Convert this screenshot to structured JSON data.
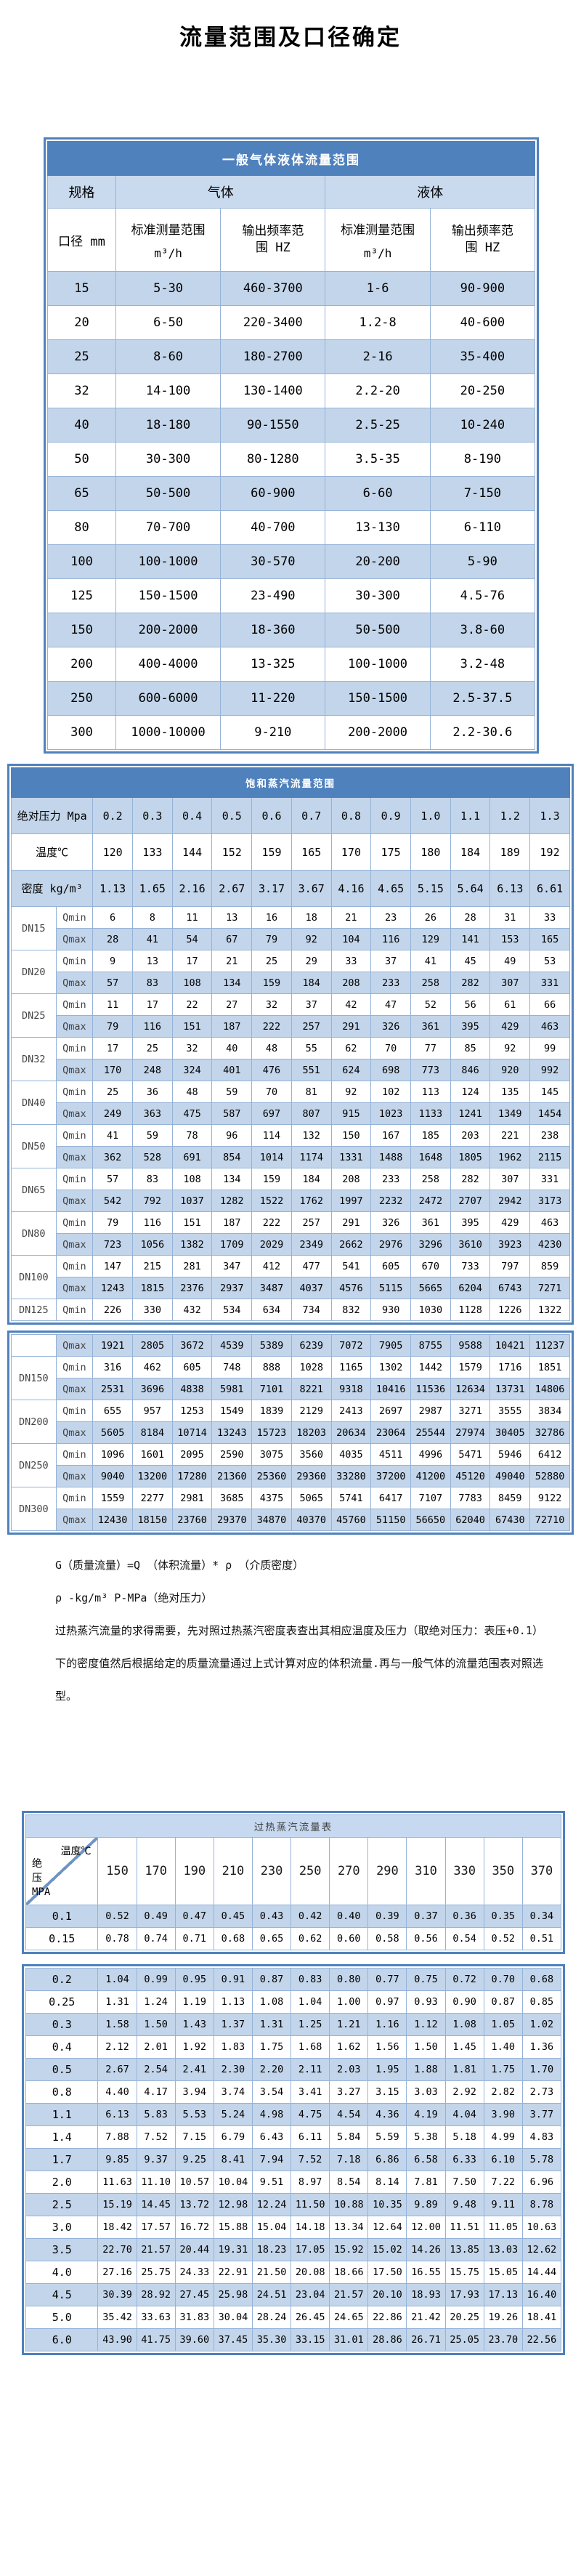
{
  "title": "流量范围及口径确定",
  "colors": {
    "header_blue": "#4f81bd",
    "band_blue": "#c3d5ea",
    "grid_blue": "#95b3d7",
    "superheated_title_bg": "#c6d9f1"
  },
  "gas_liquid_table": {
    "title": "一般气体液体流量范围",
    "spec_label": "规格",
    "gas_label": "气体",
    "liquid_label": "液体",
    "diameter_label": "口径 mm",
    "range_label": "标准测量范围",
    "range_unit": "m³/h",
    "freq_label": "输出频率范围",
    "freq_unit": "HZ",
    "rows": [
      {
        "dn": "15",
        "gas_range": "5-30",
        "gas_freq": "460-3700",
        "liquid_range": "1-6",
        "liquid_freq": "90-900"
      },
      {
        "dn": "20",
        "gas_range": "6-50",
        "gas_freq": "220-3400",
        "liquid_range": "1.2-8",
        "liquid_freq": "40-600"
      },
      {
        "dn": "25",
        "gas_range": "8-60",
        "gas_freq": "180-2700",
        "liquid_range": "2-16",
        "liquid_freq": "35-400"
      },
      {
        "dn": "32",
        "gas_range": "14-100",
        "gas_freq": "130-1400",
        "liquid_range": "2.2-20",
        "liquid_freq": "20-250"
      },
      {
        "dn": "40",
        "gas_range": "18-180",
        "gas_freq": "90-1550",
        "liquid_range": "2.5-25",
        "liquid_freq": "10-240"
      },
      {
        "dn": "50",
        "gas_range": "30-300",
        "gas_freq": "80-1280",
        "liquid_range": "3.5-35",
        "liquid_freq": "8-190"
      },
      {
        "dn": "65",
        "gas_range": "50-500",
        "gas_freq": "60-900",
        "liquid_range": "6-60",
        "liquid_freq": "7-150"
      },
      {
        "dn": "80",
        "gas_range": "70-700",
        "gas_freq": "40-700",
        "liquid_range": "13-130",
        "liquid_freq": "6-110"
      },
      {
        "dn": "100",
        "gas_range": "100-1000",
        "gas_freq": "30-570",
        "liquid_range": "20-200",
        "liquid_freq": "5-90"
      },
      {
        "dn": "125",
        "gas_range": "150-1500",
        "gas_freq": "23-490",
        "liquid_range": "30-300",
        "liquid_freq": "4.5-76"
      },
      {
        "dn": "150",
        "gas_range": "200-2000",
        "gas_freq": "18-360",
        "liquid_range": "50-500",
        "liquid_freq": "3.8-60"
      },
      {
        "dn": "200",
        "gas_range": "400-4000",
        "gas_freq": "13-325",
        "liquid_range": "100-1000",
        "liquid_freq": "3.2-48"
      },
      {
        "dn": "250",
        "gas_range": "600-6000",
        "gas_freq": "11-220",
        "liquid_range": "150-1500",
        "liquid_freq": "2.5-37.5"
      },
      {
        "dn": "300",
        "gas_range": "1000-10000",
        "gas_freq": "9-210",
        "liquid_range": "200-2000",
        "liquid_freq": "2.2-30.6"
      }
    ]
  },
  "saturated_table": {
    "title": "饱和蒸汽流量范围",
    "pressure_label": "绝对压力 Mpa",
    "temperature_label": "温度℃",
    "density_label": "密度 kg/m³",
    "qmin_label": "Qmin",
    "qmax_label": "Qmax",
    "pressures": [
      "0.2",
      "0.3",
      "0.4",
      "0.5",
      "0.6",
      "0.7",
      "0.8",
      "0.9",
      "1.0",
      "1.1",
      "1.2",
      "1.3"
    ],
    "temperatures": [
      120,
      133,
      144,
      152,
      159,
      165,
      170,
      175,
      180,
      184,
      189,
      192
    ],
    "densities": [
      "1.13",
      "1.65",
      "2.16",
      "2.67",
      "3.17",
      "3.67",
      "4.16",
      "4.65",
      "5.15",
      "5.64",
      "6.13",
      "6.61"
    ],
    "groups": [
      {
        "dn": "DN15",
        "qmin": [
          6,
          8,
          11,
          13,
          16,
          18,
          21,
          23,
          26,
          28,
          31,
          33
        ],
        "qmax": [
          28,
          41,
          54,
          67,
          79,
          92,
          104,
          116,
          129,
          141,
          153,
          165
        ]
      },
      {
        "dn": "DN20",
        "qmin": [
          9,
          13,
          17,
          21,
          25,
          29,
          33,
          37,
          41,
          45,
          49,
          53
        ],
        "qmax": [
          57,
          83,
          108,
          134,
          159,
          184,
          208,
          233,
          258,
          282,
          307,
          331
        ]
      },
      {
        "dn": "DN25",
        "qmin": [
          11,
          17,
          22,
          27,
          32,
          37,
          42,
          47,
          52,
          56,
          61,
          66
        ],
        "qmax": [
          79,
          116,
          151,
          187,
          222,
          257,
          291,
          326,
          361,
          395,
          429,
          463
        ]
      },
      {
        "dn": "DN32",
        "qmin": [
          17,
          25,
          32,
          40,
          48,
          55,
          62,
          70,
          77,
          85,
          92,
          99
        ],
        "qmax": [
          170,
          248,
          324,
          401,
          476,
          551,
          624,
          698,
          773,
          846,
          920,
          992
        ]
      },
      {
        "dn": "DN40",
        "qmin": [
          25,
          36,
          48,
          59,
          70,
          81,
          92,
          102,
          113,
          124,
          135,
          145
        ],
        "qmax": [
          249,
          363,
          475,
          587,
          697,
          807,
          915,
          1023,
          1133,
          1241,
          1349,
          1454
        ]
      },
      {
        "dn": "DN50",
        "qmin": [
          41,
          59,
          78,
          96,
          114,
          132,
          150,
          167,
          185,
          203,
          221,
          238
        ],
        "qmax": [
          362,
          528,
          691,
          854,
          1014,
          1174,
          1331,
          1488,
          1648,
          1805,
          1962,
          2115
        ]
      },
      {
        "dn": "DN65",
        "qmin": [
          57,
          83,
          108,
          134,
          159,
          184,
          208,
          233,
          258,
          282,
          307,
          331
        ],
        "qmax": [
          542,
          792,
          1037,
          1282,
          1522,
          1762,
          1997,
          2232,
          2472,
          2707,
          2942,
          3173
        ]
      },
      {
        "dn": "DN80",
        "qmin": [
          79,
          116,
          151,
          187,
          222,
          257,
          291,
          326,
          361,
          395,
          429,
          463
        ],
        "qmax": [
          723,
          1056,
          1382,
          1709,
          2029,
          2349,
          2662,
          2976,
          3296,
          3610,
          3923,
          4230
        ]
      },
      {
        "dn": "DN100",
        "qmin": [
          147,
          215,
          281,
          347,
          412,
          477,
          541,
          605,
          670,
          733,
          797,
          859
        ],
        "qmax": [
          1243,
          1815,
          2376,
          2937,
          3487,
          4037,
          4576,
          5115,
          5665,
          6204,
          6743,
          7271
        ]
      },
      {
        "dn": "DN125",
        "qmin": [
          226,
          330,
          432,
          534,
          634,
          734,
          832,
          930,
          1030,
          1128,
          1226,
          1322
        ]
      }
    ],
    "continued": {
      "qmax_first": [
        1921,
        2805,
        3672,
        4539,
        5389,
        6239,
        7072,
        7905,
        8755,
        9588,
        10421,
        11237
      ],
      "groups": [
        {
          "dn": "DN150",
          "qmin": [
            316,
            462,
            605,
            748,
            888,
            1028,
            1165,
            1302,
            1442,
            1579,
            1716,
            1851
          ],
          "qmax": [
            2531,
            3696,
            4838,
            5981,
            7101,
            8221,
            9318,
            10416,
            11536,
            12634,
            13731,
            14806
          ]
        },
        {
          "dn": "DN200",
          "qmin": [
            655,
            957,
            1253,
            1549,
            1839,
            2129,
            2413,
            2697,
            2987,
            3271,
            3555,
            3834
          ],
          "qmax": [
            5605,
            8184,
            10714,
            13243,
            15723,
            18203,
            20634,
            23064,
            25544,
            27974,
            30405,
            32786
          ]
        },
        {
          "dn": "DN250",
          "qmin": [
            1096,
            1601,
            2095,
            2590,
            3075,
            3560,
            4035,
            4511,
            4996,
            5471,
            5946,
            6412
          ],
          "qmax": [
            9040,
            13200,
            17280,
            21360,
            25360,
            29360,
            33280,
            37200,
            41200,
            45120,
            49040,
            52880
          ]
        },
        {
          "dn": "DN300",
          "qmin": [
            1559,
            2277,
            2981,
            3685,
            4375,
            5065,
            5741,
            6417,
            7107,
            7783,
            8459,
            9122
          ],
          "qmax": [
            12430,
            18150,
            23760,
            29370,
            34870,
            40370,
            45760,
            51150,
            56650,
            62040,
            67430,
            72710
          ]
        }
      ]
    }
  },
  "notes": [
    "G（质量流量）=Q （体积流量）* ρ （介质密度）",
    "ρ -kg/m³ P-MPa（绝对压力）",
    "过热蒸汽流量的求得需要，先对照过热蒸汽密度表查出其相应温度及压力（取绝对压力：表压+0.1）下的密度值然后根据给定的质量流量通过上式计算对应的体积流量.再与一般气体的流量范围表对照选型。"
  ],
  "superheated_table": {
    "title": "过热蒸汽流量表",
    "corner_top": "温度℃",
    "corner_bottom": "绝压 MPA",
    "temperatures": [
      "150",
      "170",
      "190",
      "210",
      "230",
      "250",
      "270",
      "290",
      "310",
      "330",
      "350",
      "370"
    ],
    "rows_box1": [
      {
        "p": "0.1",
        "v": [
          "0.52",
          "0.49",
          "0.47",
          "0.45",
          "0.43",
          "0.42",
          "0.40",
          "0.39",
          "0.37",
          "0.36",
          "0.35",
          "0.34"
        ]
      },
      {
        "p": "0.15",
        "v": [
          "0.78",
          "0.74",
          "0.71",
          "0.68",
          "0.65",
          "0.62",
          "0.60",
          "0.58",
          "0.56",
          "0.54",
          "0.52",
          "0.51"
        ]
      }
    ],
    "rows_box2": [
      {
        "p": "0.2",
        "v": [
          "1.04",
          "0.99",
          "0.95",
          "0.91",
          "0.87",
          "0.83",
          "0.80",
          "0.77",
          "0.75",
          "0.72",
          "0.70",
          "0.68"
        ]
      },
      {
        "p": "0.25",
        "v": [
          "1.31",
          "1.24",
          "1.19",
          "1.13",
          "1.08",
          "1.04",
          "1.00",
          "0.97",
          "0.93",
          "0.90",
          "0.87",
          "0.85"
        ]
      },
      {
        "p": "0.3",
        "v": [
          "1.58",
          "1.50",
          "1.43",
          "1.37",
          "1.31",
          "1.25",
          "1.21",
          "1.16",
          "1.12",
          "1.08",
          "1.05",
          "1.02"
        ]
      },
      {
        "p": "0.4",
        "v": [
          "2.12",
          "2.01",
          "1.92",
          "1.83",
          "1.75",
          "1.68",
          "1.62",
          "1.56",
          "1.50",
          "1.45",
          "1.40",
          "1.36"
        ]
      },
      {
        "p": "0.5",
        "v": [
          "2.67",
          "2.54",
          "2.41",
          "2.30",
          "2.20",
          "2.11",
          "2.03",
          "1.95",
          "1.88",
          "1.81",
          "1.75",
          "1.70"
        ]
      },
      {
        "p": "0.8",
        "v": [
          "4.40",
          "4.17",
          "3.94",
          "3.74",
          "3.54",
          "3.41",
          "3.27",
          "3.15",
          "3.03",
          "2.92",
          "2.82",
          "2.73"
        ]
      },
      {
        "p": "1.1",
        "v": [
          "6.13",
          "5.83",
          "5.53",
          "5.24",
          "4.98",
          "4.75",
          "4.54",
          "4.36",
          "4.19",
          "4.04",
          "3.90",
          "3.77"
        ]
      },
      {
        "p": "1.4",
        "v": [
          "7.88",
          "7.52",
          "7.15",
          "6.79",
          "6.43",
          "6.11",
          "5.84",
          "5.59",
          "5.38",
          "5.18",
          "4.99",
          "4.83"
        ]
      },
      {
        "p": "1.7",
        "v": [
          "9.85",
          "9.37",
          "9.25",
          "8.41",
          "7.94",
          "7.52",
          "7.18",
          "6.86",
          "6.58",
          "6.33",
          "6.10",
          "5.78"
        ]
      },
      {
        "p": "2.0",
        "v": [
          "11.63",
          "11.10",
          "10.57",
          "10.04",
          "9.51",
          "8.97",
          "8.54",
          "8.14",
          "7.81",
          "7.50",
          "7.22",
          "6.96"
        ]
      },
      {
        "p": "2.5",
        "v": [
          "15.19",
          "14.45",
          "13.72",
          "12.98",
          "12.24",
          "11.50",
          "10.88",
          "10.35",
          "9.89",
          "9.48",
          "9.11",
          "8.78"
        ]
      },
      {
        "p": "3.0",
        "v": [
          "18.42",
          "17.57",
          "16.72",
          "15.88",
          "15.04",
          "14.18",
          "13.34",
          "12.64",
          "12.00",
          "11.51",
          "11.05",
          "10.63"
        ]
      },
      {
        "p": "3.5",
        "v": [
          "22.70",
          "21.57",
          "20.44",
          "19.31",
          "18.23",
          "17.05",
          "15.92",
          "15.02",
          "14.26",
          "13.85",
          "13.03",
          "12.62"
        ]
      },
      {
        "p": "4.0",
        "v": [
          "27.16",
          "25.75",
          "24.33",
          "22.91",
          "21.50",
          "20.08",
          "18.66",
          "17.50",
          "16.55",
          "15.75",
          "15.05",
          "14.44"
        ]
      },
      {
        "p": "4.5",
        "v": [
          "30.39",
          "28.92",
          "27.45",
          "25.98",
          "24.51",
          "23.04",
          "21.57",
          "20.10",
          "18.93",
          "17.93",
          "17.13",
          "16.40"
        ]
      },
      {
        "p": "5.0",
        "v": [
          "35.42",
          "33.63",
          "31.83",
          "30.04",
          "28.24",
          "26.45",
          "24.65",
          "22.86",
          "21.42",
          "20.25",
          "19.26",
          "18.41"
        ]
      },
      {
        "p": "6.0",
        "v": [
          "43.90",
          "41.75",
          "39.60",
          "37.45",
          "35.30",
          "33.15",
          "31.01",
          "28.86",
          "26.71",
          "25.05",
          "23.70",
          "22.56"
        ]
      }
    ]
  }
}
